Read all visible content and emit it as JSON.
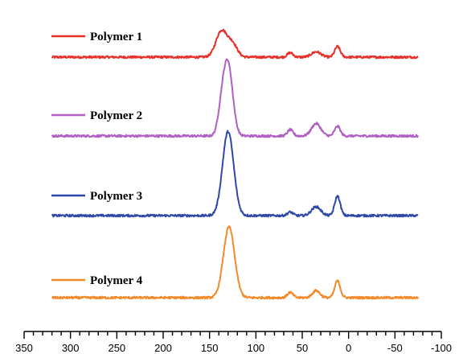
{
  "chart_data": {
    "type": "line",
    "title": "",
    "xlabel": "",
    "ylabel": "",
    "xlim": [
      350,
      -100
    ],
    "x_reversed": true,
    "x_ticks": [
      350,
      300,
      250,
      200,
      150,
      100,
      50,
      0,
      -50,
      -100
    ],
    "x_tick_labels": [
      "350",
      "300",
      "250",
      "200",
      "150",
      "100",
      "50",
      "0",
      "-50",
      "-100"
    ],
    "minor_tick_step": 10,
    "y_axis_visible": false,
    "grid": false,
    "legend": "inline-left-of-each-trace",
    "layout": "stacked-offset",
    "x_range_of_traces": [
      320,
      -75
    ],
    "series": [
      {
        "name": "Polymer 1",
        "color": "#e8302a",
        "baseline": 0,
        "noise": 0.8,
        "peaks": [
          {
            "x": 137,
            "height": 30,
            "width": 6
          },
          {
            "x": 125,
            "height": 14,
            "width": 5
          },
          {
            "x": 63,
            "height": 5,
            "width": 3
          },
          {
            "x": 35,
            "height": 6,
            "width": 5
          },
          {
            "x": 12,
            "height": 12,
            "width": 3
          }
        ]
      },
      {
        "name": "Polymer 2",
        "color": "#b05fc4",
        "baseline": 0,
        "noise": 0.8,
        "peaks": [
          {
            "x": 137,
            "height": 25,
            "width": 4
          },
          {
            "x": 130,
            "height": 80,
            "width": 5
          },
          {
            "x": 63,
            "height": 7,
            "width": 3
          },
          {
            "x": 35,
            "height": 14,
            "width": 5
          },
          {
            "x": 12,
            "height": 11,
            "width": 3
          }
        ]
      },
      {
        "name": "Polymer 3",
        "color": "#2f48a8",
        "baseline": 0,
        "noise": 0.8,
        "peaks": [
          {
            "x": 130,
            "height": 95,
            "width": 6
          },
          {
            "x": 63,
            "height": 4,
            "width": 3
          },
          {
            "x": 35,
            "height": 10,
            "width": 5
          },
          {
            "x": 12,
            "height": 22,
            "width": 3
          }
        ]
      },
      {
        "name": "Polymer 4",
        "color": "#f28a2a",
        "baseline": 0,
        "noise": 0.8,
        "peaks": [
          {
            "x": 129,
            "height": 80,
            "width": 6
          },
          {
            "x": 63,
            "height": 6,
            "width": 3
          },
          {
            "x": 35,
            "height": 8,
            "width": 4
          },
          {
            "x": 12,
            "height": 19,
            "width": 3
          }
        ]
      }
    ]
  }
}
